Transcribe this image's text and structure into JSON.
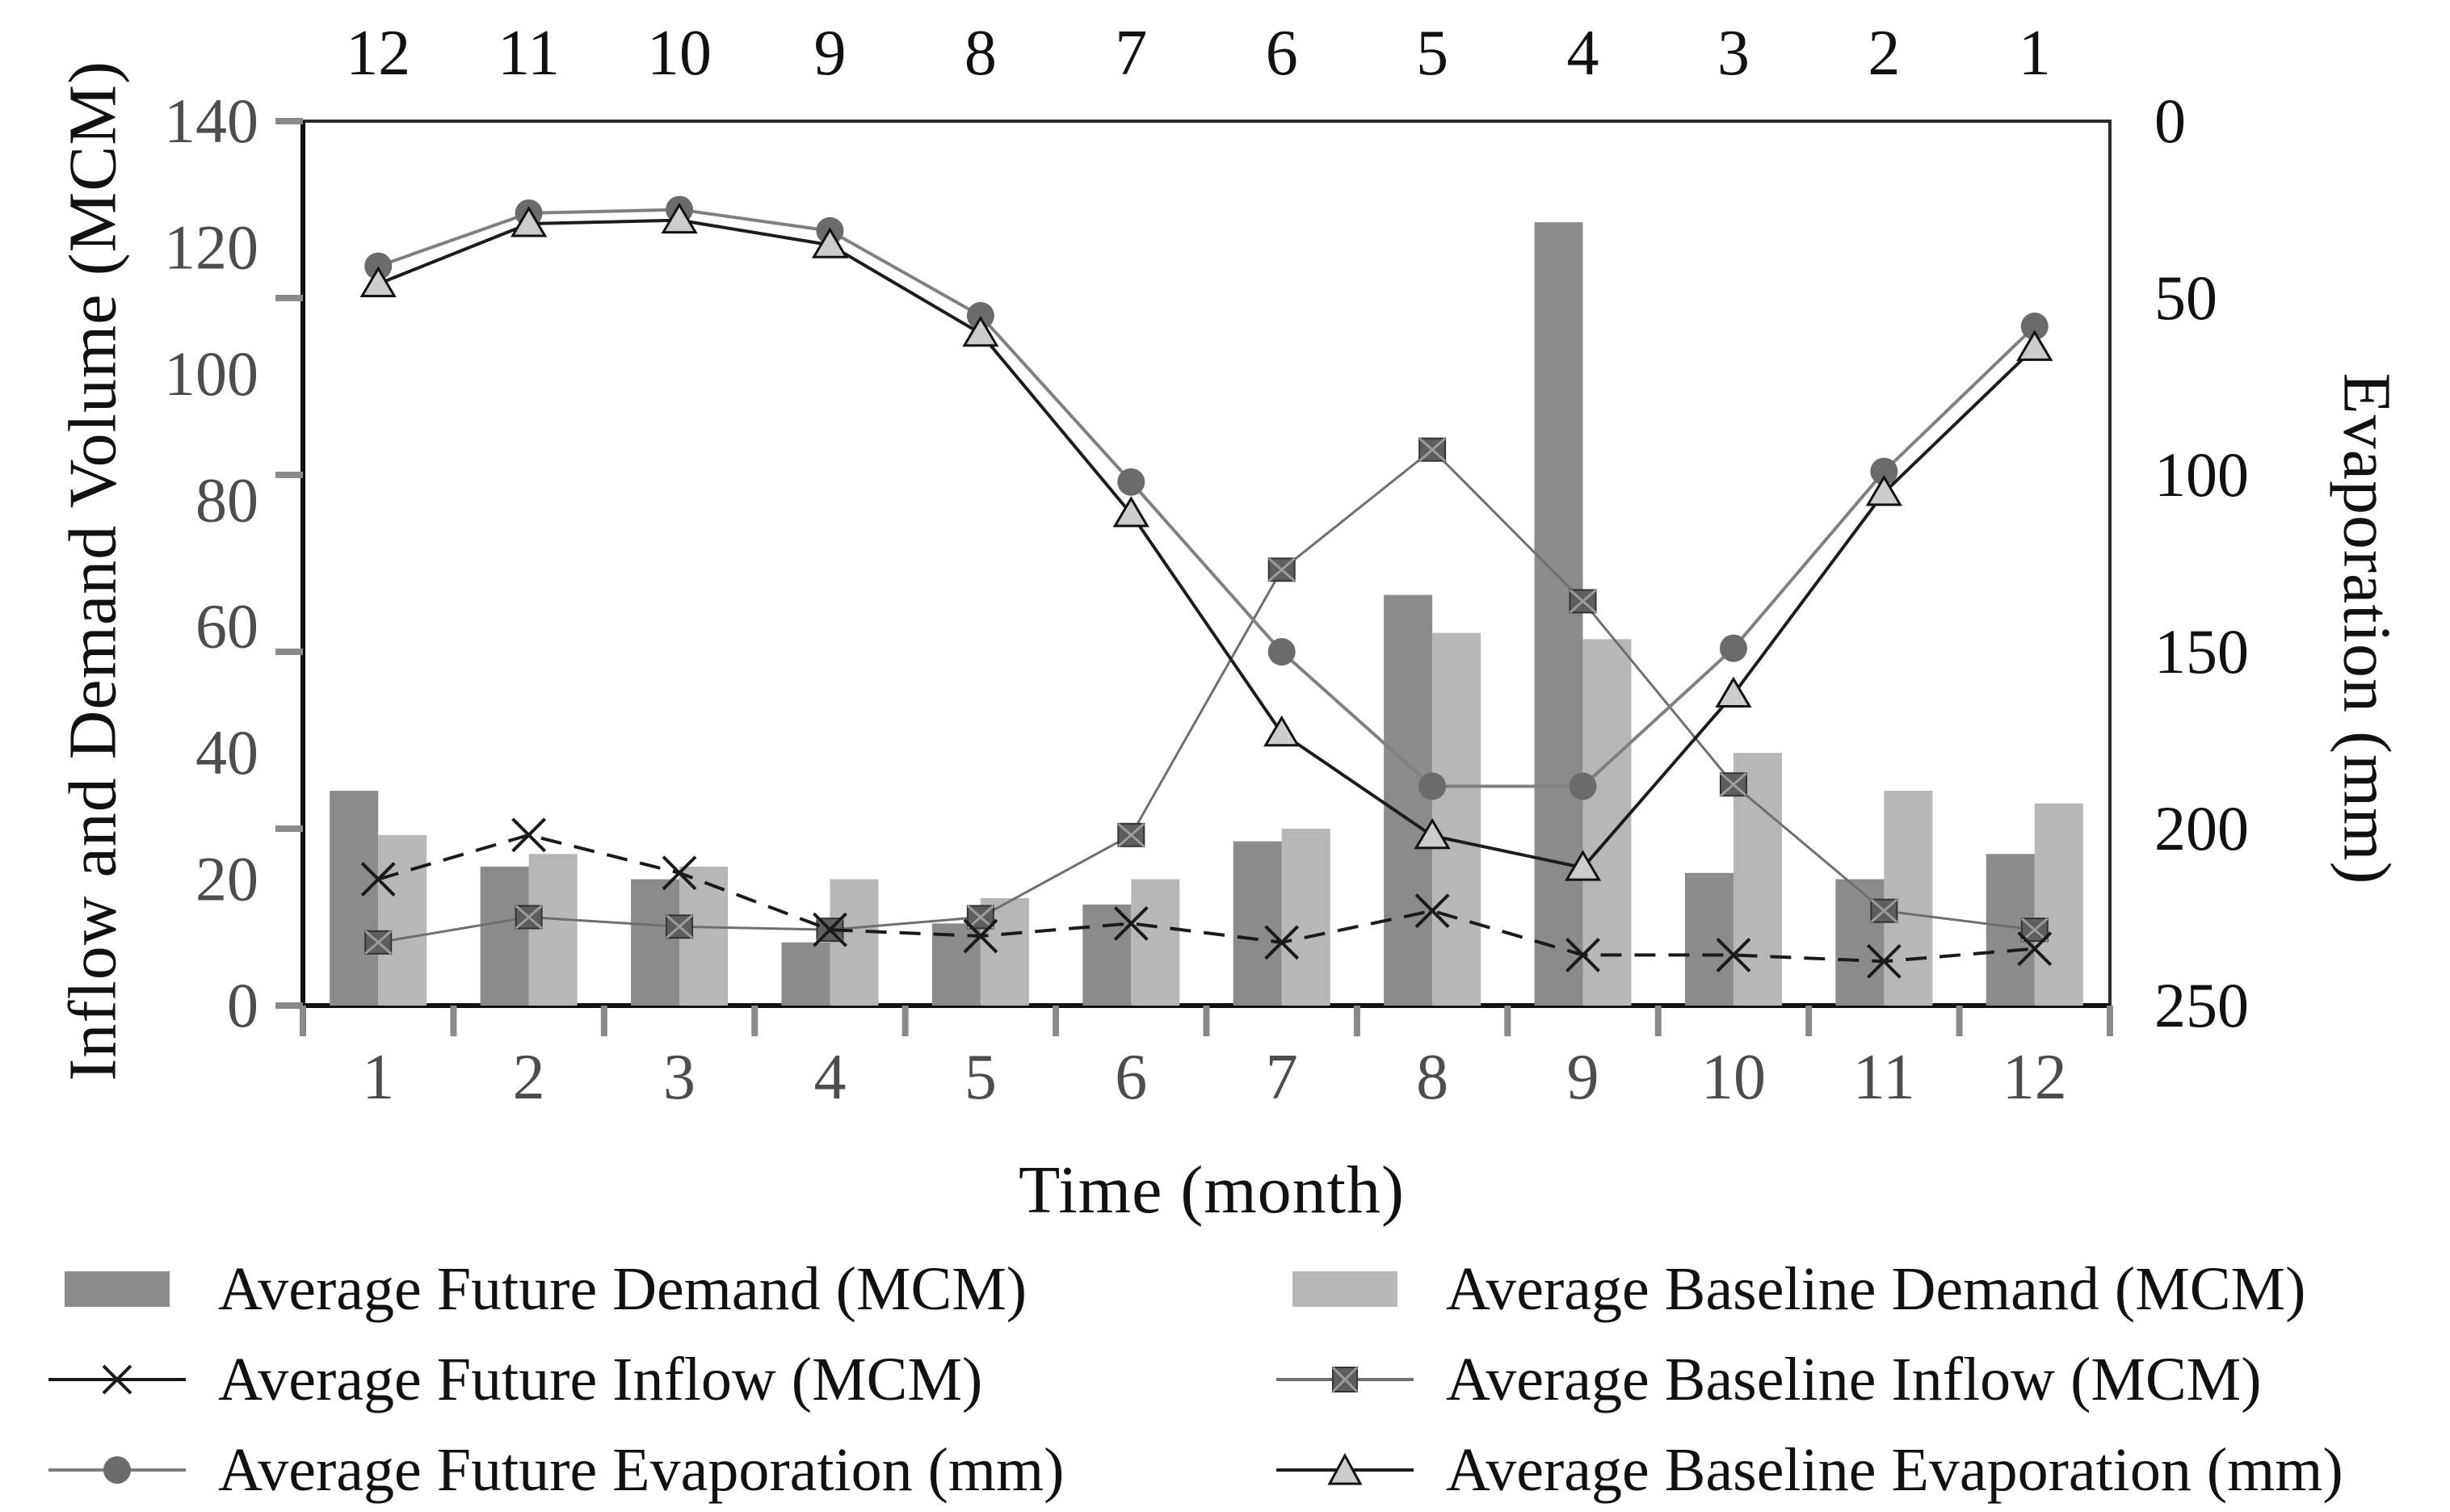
{
  "chart_data": {
    "type": "bar+line combo, dual y-axis",
    "x": [
      1,
      2,
      3,
      4,
      5,
      6,
      7,
      8,
      9,
      10,
      11,
      12
    ],
    "top_axis_labels": [
      12,
      11,
      10,
      9,
      8,
      7,
      6,
      5,
      4,
      3,
      2,
      1
    ],
    "x_axis": {
      "label": "Time (month)"
    },
    "left_axis": {
      "label": "Inflow and Demand Volume (MCM)",
      "min": 0,
      "max": 140,
      "tick_labels": [
        0,
        20,
        40,
        60,
        80,
        100,
        120,
        140
      ],
      "tick_mark_values": [
        0,
        28,
        56,
        84,
        112,
        140
      ]
    },
    "right_axis": {
      "label": "Evaporation (mm)",
      "min": 0,
      "max": 250,
      "inverted": true,
      "tick_labels": [
        0,
        50,
        100,
        150,
        200,
        250
      ]
    },
    "grid": "off",
    "legend_position": "bottom, two columns",
    "series": [
      {
        "name": "Average Future Demand (MCM)",
        "type": "bar",
        "axis": "left",
        "color": "#8b8b8b",
        "values": [
          34,
          22,
          20,
          10,
          13,
          16,
          26,
          65,
          124,
          21,
          20,
          24
        ]
      },
      {
        "name": "Average Baseline Demand (MCM)",
        "type": "bar",
        "axis": "left",
        "color": "#b7b7b7",
        "values": [
          27,
          24,
          22,
          20,
          17,
          20,
          28,
          59,
          58,
          40,
          34,
          32
        ]
      },
      {
        "name": "Average Future Inflow (MCM)",
        "type": "line",
        "axis": "left",
        "color": "#1a1a1a",
        "marker": "x",
        "dashed": true,
        "values": [
          20,
          27,
          21,
          12,
          11,
          13,
          10,
          15,
          8,
          8,
          7,
          9
        ]
      },
      {
        "name": "Average Baseline Inflow (MCM)",
        "type": "line",
        "axis": "left",
        "color": "#6f6f6f",
        "marker": "square",
        "dashed": false,
        "values": [
          10,
          14,
          12.5,
          12,
          14,
          27,
          69,
          88,
          64,
          35,
          15,
          12
        ]
      },
      {
        "name": "Average Future Evaporation (mm)",
        "type": "line",
        "axis": "right",
        "color": "#808080",
        "marker": "circle",
        "dashed": false,
        "values": [
          41,
          26,
          25,
          31,
          55,
          102,
          150,
          188,
          188,
          149,
          99,
          58
        ]
      },
      {
        "name": "Average Baseline Evaporation (mm)",
        "type": "line",
        "axis": "right",
        "color": "#1c1c1c",
        "marker": "triangle",
        "dashed": false,
        "values": [
          46,
          29,
          28,
          35,
          60,
          111,
          173,
          202,
          211,
          162,
          105,
          64
        ]
      }
    ],
    "marker_colors": {
      "square_fill": "#5e5e5e",
      "circle_fill": "#6b6b6b",
      "triangle_fill": "#cccccc"
    },
    "tick_label_color_left_bottom": "#4d4d4d",
    "tick_label_color_top_right": "#111111"
  }
}
